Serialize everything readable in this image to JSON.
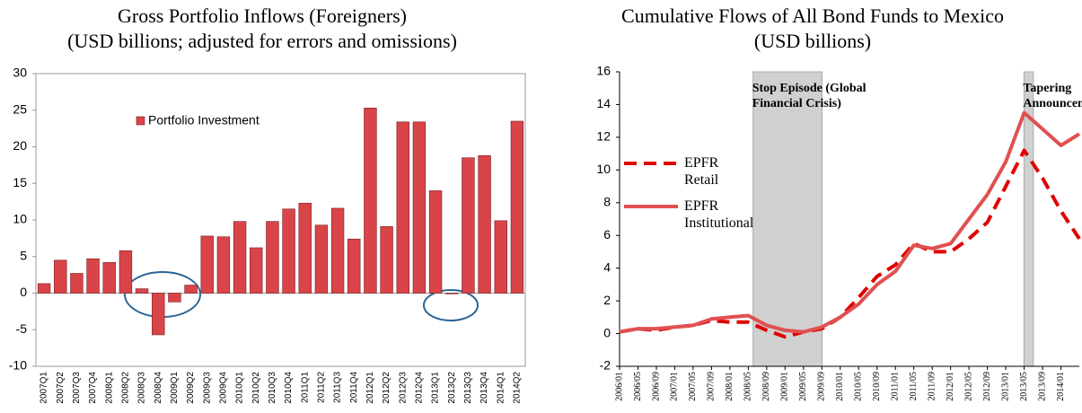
{
  "chart_data": [
    {
      "type": "bar",
      "title": "Gross Portfolio Inflows (Foreigners)",
      "subtitle": "(USD billions; adjusted for errors and omissions)",
      "categories": [
        "2007Q1",
        "2007Q2",
        "2007Q3",
        "2007Q4",
        "2008Q1",
        "2008Q2",
        "2008Q3",
        "2008Q4",
        "2009Q1",
        "2009Q2",
        "2009Q3",
        "2009Q4",
        "2010Q1",
        "2010Q2",
        "2010Q3",
        "2010Q4",
        "2011Q1",
        "2011Q2",
        "2011Q3",
        "2011Q4",
        "2012Q1",
        "2012Q2",
        "2012Q3",
        "2012Q4",
        "2013Q1",
        "2013Q2",
        "2013Q3",
        "2013Q4",
        "2014Q1",
        "2014Q2"
      ],
      "series": [
        {
          "name": "Portfolio Investment",
          "color": "#d94448",
          "values": [
            1.3,
            4.5,
            2.7,
            4.7,
            4.2,
            5.8,
            0.6,
            -5.7,
            -1.2,
            1.1,
            7.8,
            7.7,
            9.8,
            6.2,
            9.8,
            11.5,
            12.3,
            9.3,
            11.6,
            7.4,
            25.3,
            9.1,
            23.4,
            23.4,
            14.0,
            -0.1,
            18.5,
            18.8,
            9.9,
            23.5
          ]
        }
      ],
      "ylim": [
        -10,
        30
      ],
      "yticks": [
        -10,
        -5,
        0,
        5,
        10,
        15,
        20,
        25,
        30
      ],
      "legend": "upper left"
    },
    {
      "type": "line",
      "title": "Cumulative Flows of All Bond Funds to Mexico",
      "subtitle": "(USD billions)",
      "x": [
        2006,
        2006.333,
        2006.667,
        2007,
        2007.333,
        2007.667,
        2008,
        2008.333,
        2008.667,
        2009,
        2009.333,
        2009.667,
        2010,
        2010.333,
        2010.667,
        2011,
        2011.333,
        2011.667,
        2012,
        2012.333,
        2012.667,
        2013,
        2013.333,
        2013.667,
        2014,
        2014.333
      ],
      "series": [
        {
          "name": "EPFR Retail",
          "color": "#e00000",
          "dashed": true,
          "values": [
            0.1,
            0.3,
            0.2,
            0.4,
            0.5,
            0.8,
            0.7,
            0.7,
            0.2,
            -0.2,
            0.1,
            0.3,
            1.0,
            2.2,
            3.5,
            4.2,
            5.5,
            5.0,
            5.0,
            5.8,
            6.8,
            9.0,
            11.2,
            9.5,
            7.5,
            5.8
          ]
        },
        {
          "name": "EPFR Institutional",
          "color": "#e05050",
          "dashed": false,
          "values": [
            0.1,
            0.3,
            0.3,
            0.4,
            0.5,
            0.9,
            1.0,
            1.1,
            0.5,
            0.2,
            0.1,
            0.4,
            1.0,
            1.8,
            3.0,
            3.8,
            5.4,
            5.2,
            5.5,
            7.0,
            8.5,
            10.5,
            13.5,
            12.5,
            11.5,
            12.2
          ]
        }
      ],
      "xlim": [
        2006,
        2014.333
      ],
      "xticks": [
        {
          "value": 2006,
          "label": "2006/01"
        },
        {
          "value": 2006.333,
          "label": "2006/05"
        },
        {
          "value": 2006.667,
          "label": "2006/09"
        },
        {
          "value": 2007,
          "label": "2007/01"
        },
        {
          "value": 2007.333,
          "label": "2007/05"
        },
        {
          "value": 2007.667,
          "label": "2007/09"
        },
        {
          "value": 2008,
          "label": "2008/01"
        },
        {
          "value": 2008.333,
          "label": "2008/05"
        },
        {
          "value": 2008.667,
          "label": "2008/09"
        },
        {
          "value": 2009,
          "label": "2009/01"
        },
        {
          "value": 2009.333,
          "label": "2009/05"
        },
        {
          "value": 2009.667,
          "label": "2009/09"
        },
        {
          "value": 2010,
          "label": "2010/01"
        },
        {
          "value": 2010.333,
          "label": "2010/05"
        },
        {
          "value": 2010.667,
          "label": "2010/09"
        },
        {
          "value": 2011,
          "label": "2011/01"
        },
        {
          "value": 2011.333,
          "label": "2011/05"
        },
        {
          "value": 2011.667,
          "label": "2011/09"
        },
        {
          "value": 2012,
          "label": "2012/01"
        },
        {
          "value": 2012.333,
          "label": "2012/05"
        },
        {
          "value": 2012.667,
          "label": "2012/09"
        },
        {
          "value": 2013,
          "label": "2013/01"
        },
        {
          "value": 2013.333,
          "label": "2013/05"
        },
        {
          "value": 2013.667,
          "label": "2013/09"
        },
        {
          "value": 2014,
          "label": "2014/01"
        }
      ],
      "ylim": [
        -2,
        16
      ],
      "yticks": [
        -2,
        0,
        2,
        4,
        6,
        8,
        10,
        12,
        14,
        16
      ],
      "shaded": [
        {
          "xlim": [
            2008.42,
            2009.67
          ],
          "label": "Stop Episode (Global Financial Crisis)"
        },
        {
          "xlim": [
            2013.33,
            2013.5
          ],
          "label": "Tapering Announcement"
        }
      ],
      "legend": "center left"
    }
  ]
}
